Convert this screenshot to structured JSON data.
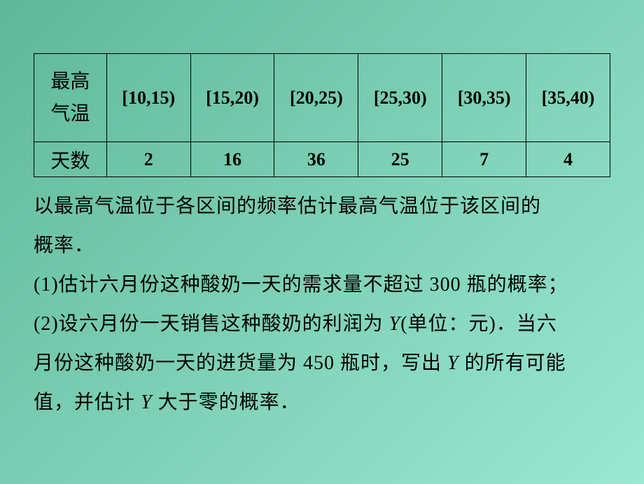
{
  "table": {
    "header_label": "最高\n气温",
    "ranges": [
      "[10,15)",
      "[15,20)",
      "[20,25)",
      "[25,30)",
      "[30,35)",
      "[35,40)"
    ],
    "row_label": "天数",
    "counts": [
      "2",
      "16",
      "36",
      "25",
      "7",
      "4"
    ],
    "border_color": "#000000",
    "header_fontsize": 28,
    "range_fontsize": 26,
    "count_fontsize": 26
  },
  "paragraphs": {
    "p1a": "以最高气温位于各区间的频率估计最高气温位于该区间的",
    "p1b": "概率．",
    "p2a": "(1)估计六月份这种酸奶一天的需求量不超过 ",
    "p2b": "300",
    "p2c": " 瓶的概率；",
    "p3a": "(2)设六月份一天销售这种酸奶的利润为 ",
    "p3b": "Y",
    "p3c": "(单位：元)．当六",
    "p4a": "月份这种酸奶一天的进货量为 ",
    "p4b": "450",
    "p4c": " 瓶时，写出 ",
    "p4d": "Y",
    "p4e": " 的所有可能",
    "p5a": "值，并估计 ",
    "p5b": "Y",
    "p5c": " 大于零的概率．"
  },
  "style": {
    "bg_gradient_start": "#5fb89a",
    "bg_gradient_end": "#9be8d2",
    "text_color": "#000000",
    "body_fontsize": 28,
    "body_lineheight": 56
  }
}
